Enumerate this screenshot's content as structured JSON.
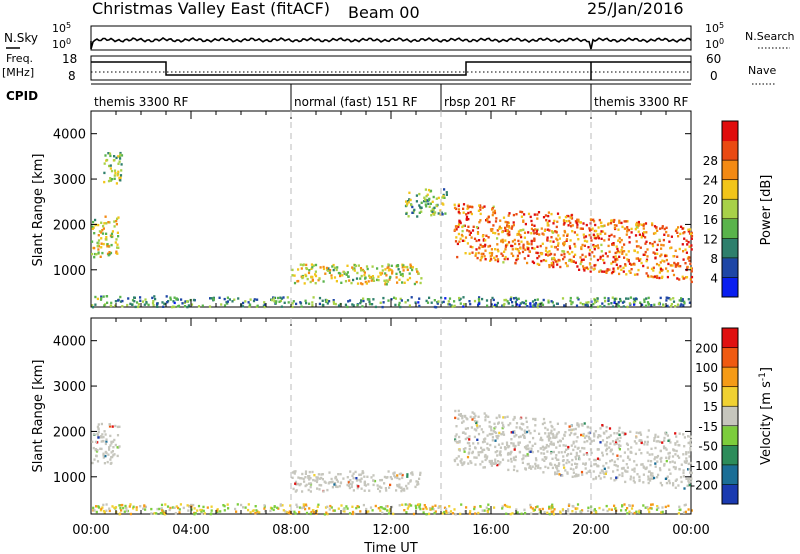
{
  "header": {
    "title": "Christmas Valley East (fitACF)",
    "beam": "Beam 00",
    "date": "25/Jan/2016"
  },
  "panels": {
    "nsky_label": "N.Sky",
    "nsearch_label": "N.Search",
    "nsky_ticks": [
      "10^5",
      "10^0"
    ],
    "freq_label": "Freq.",
    "freq_unit": "[MHz]",
    "freq_ticks": [
      "18",
      "8"
    ],
    "nave_label": "Nave",
    "nave_ticks": [
      "60",
      "0"
    ],
    "cpid_label": "CPID"
  },
  "cpid_segments": [
    {
      "label": "themis 3300 RF",
      "start_hour": 0
    },
    {
      "label": "normal (fast) 151 RF",
      "start_hour": 8
    },
    {
      "label": "rbsp 201 RF",
      "start_hour": 14
    },
    {
      "label": "themis 3300 RF",
      "start_hour": 20
    }
  ],
  "chart_data": [
    {
      "type": "heatmap",
      "name": "power",
      "ylabel": "Slant Range [km]",
      "xlabel": "",
      "xlim_hours": [
        0,
        24
      ],
      "ylim_km": [
        180,
        4500
      ],
      "yticks": [
        1000,
        2000,
        3000,
        4000
      ],
      "colorbar": {
        "label": "Power [dB]",
        "ticks": [
          "4",
          "8",
          "12",
          "16",
          "20",
          "24",
          "28"
        ],
        "colors": [
          "#0a1ff0",
          "#1e46a6",
          "#2e7f6c",
          "#59b34b",
          "#a8d148",
          "#f2c51a",
          "#f38a14",
          "#ea4a12",
          "#e00c0c"
        ]
      },
      "echo_regions": [
        {
          "x": [
            0.0,
            1.1
          ],
          "y": [
            1300,
            2200
          ],
          "level": 0.55
        },
        {
          "x": [
            0.4,
            1.2
          ],
          "y": [
            2900,
            3600
          ],
          "level": 0.45
        },
        {
          "x": [
            0.0,
            3.0
          ],
          "y": [
            200,
            450
          ],
          "level": 0.35
        },
        {
          "x": [
            3.0,
            24.0
          ],
          "y": [
            200,
            420
          ],
          "level": 0.3
        },
        {
          "x": [
            8.0,
            13.2
          ],
          "y": [
            700,
            1150
          ],
          "level": 0.55
        },
        {
          "x": [
            12.5,
            14.2
          ],
          "y": [
            2200,
            2800
          ],
          "level": 0.4
        },
        {
          "x": [
            14.5,
            24.0
          ],
          "y": [
            1100,
            2200
          ],
          "level": 0.8
        }
      ]
    },
    {
      "type": "heatmap",
      "name": "velocity",
      "ylabel": "Slant Range [km]",
      "xlabel": "Time UT",
      "xlim_hours": [
        0,
        24
      ],
      "ylim_km": [
        180,
        4500
      ],
      "yticks": [
        1000,
        2000,
        3000,
        4000
      ],
      "xtick_labels": [
        "00:00",
        "04:00",
        "08:00",
        "12:00",
        "16:00",
        "20:00",
        "00:00"
      ],
      "colorbar": {
        "label": "Velocity [m s",
        "label_sup": "-1",
        "label_end": "]",
        "ticks": [
          "200",
          "100",
          "50",
          "15",
          "-15",
          "-50",
          "-100",
          "-200"
        ],
        "colors": [
          "#1a3ab0",
          "#1b6e96",
          "#2c8c5a",
          "#7ccd3c",
          "#c6c6bd",
          "#f0d132",
          "#f59b17",
          "#ef5a11",
          "#e01010"
        ]
      },
      "echo_regions": [
        {
          "x": [
            0.0,
            1.1
          ],
          "y": [
            1300,
            2200
          ],
          "level": "gray"
        },
        {
          "x": [
            8.0,
            13.2
          ],
          "y": [
            700,
            1150
          ],
          "level": "gray"
        },
        {
          "x": [
            14.5,
            24.0
          ],
          "y": [
            1100,
            2200
          ],
          "level": "gray"
        },
        {
          "x": [
            0.0,
            24.0
          ],
          "y": [
            200,
            420
          ],
          "level": "low-velocity"
        }
      ]
    }
  ]
}
